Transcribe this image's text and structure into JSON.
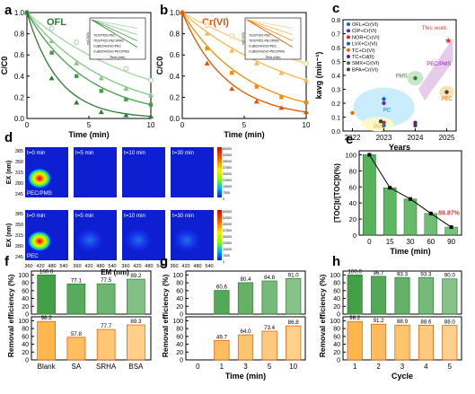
{
  "colors": {
    "green_dark": "#2e7d32",
    "green_mid": "#43a047",
    "green_light": "#81c784",
    "green_pale": "#a5d6a7",
    "orange_dark": "#e65100",
    "orange_mid": "#fb8c00",
    "orange_light": "#ffb74d",
    "orange_pale": "#ffcc80"
  },
  "panel_letters": {
    "a": "a",
    "b": "b",
    "c": "c",
    "d": "d",
    "e": "e",
    "f": "f",
    "g": "g",
    "h": "h"
  },
  "chart_data": [
    {
      "id": "a",
      "type": "line",
      "title": "OFL",
      "xlabel": "Time (min)",
      "ylabel": "C/C0",
      "xlim": [
        0,
        10
      ],
      "ylim": [
        0,
        1.0
      ],
      "xticks": [
        "0",
        "5",
        "10"
      ],
      "yticks": [
        "0.0",
        "0.2",
        "0.4",
        "0.6",
        "0.8",
        "1.0"
      ],
      "series": [
        {
          "name": "TiO2/TiO2-PEC",
          "x": [
            0,
            2,
            4,
            6,
            8,
            10
          ],
          "values": [
            1.0,
            0.85,
            0.72,
            0.58,
            0.47,
            0.36
          ]
        },
        {
          "name": "TiO2/TiO2-PEC/PMS",
          "x": [
            0,
            2,
            4,
            6,
            8,
            10
          ],
          "values": [
            1.0,
            0.73,
            0.52,
            0.38,
            0.28,
            0.22
          ]
        },
        {
          "name": "CuBi2O4/ZnO-PEC",
          "x": [
            0,
            2,
            4,
            6,
            8,
            10
          ],
          "values": [
            1.0,
            0.62,
            0.4,
            0.26,
            0.18,
            0.13
          ]
        },
        {
          "name": "CuBi2O4/ZnO-PEC/PMS",
          "x": [
            0,
            2,
            4,
            6,
            8,
            10
          ],
          "values": [
            1.0,
            0.38,
            0.15,
            0.06,
            0.03,
            0.02
          ]
        }
      ],
      "inset": {
        "ylabel": "ln(C/C0)",
        "xlabel": "Time (min)"
      }
    },
    {
      "id": "b",
      "type": "line",
      "title": "Cr(VI)",
      "xlabel": "Time (min)",
      "ylabel": "C/C0",
      "xlim": [
        0,
        10
      ],
      "ylim": [
        0,
        1.0
      ],
      "xticks": [
        "0",
        "5",
        "10"
      ],
      "yticks": [
        "0.0",
        "0.2",
        "0.4",
        "0.6",
        "0.8",
        "1.0"
      ],
      "series": [
        {
          "name": "TiO2/TiO2-PEC",
          "x": [
            0,
            2,
            4,
            6,
            8,
            10
          ],
          "values": [
            1.0,
            0.88,
            0.78,
            0.68,
            0.6,
            0.52
          ]
        },
        {
          "name": "TiO2/TiO2-PEC/PMS",
          "x": [
            0,
            2,
            4,
            6,
            8,
            10
          ],
          "values": [
            1.0,
            0.8,
            0.64,
            0.52,
            0.43,
            0.36
          ]
        },
        {
          "name": "CuBi2O4/ZnO-PEC",
          "x": [
            0,
            2,
            4,
            6,
            8,
            10
          ],
          "values": [
            1.0,
            0.66,
            0.43,
            0.3,
            0.2,
            0.15
          ]
        },
        {
          "name": "CuBi2O4/ZnO-PEC/PMS",
          "x": [
            0,
            2,
            4,
            6,
            8,
            10
          ],
          "values": [
            1.0,
            0.52,
            0.28,
            0.16,
            0.1,
            0.06
          ]
        }
      ],
      "inset": {
        "ylabel": "ln(C/C0)",
        "xlabel": "Time (min)"
      }
    },
    {
      "id": "c",
      "type": "scatter",
      "xlabel": "Years",
      "ylabel": "kavg (min⁻¹)",
      "xticks": [
        "2022",
        "2023",
        "2024",
        "2025"
      ],
      "xlim": [
        2021.7,
        2025.3
      ],
      "ylim": [
        0,
        0.8
      ],
      "yticks": [
        "0.0",
        "0.1",
        "0.2",
        "0.3",
        "0.4",
        "0.5",
        "0.6",
        "0.7",
        "0.8"
      ],
      "legend": [
        "OFL+Cr(VI)",
        "CIP+Cr(VI)",
        "NOR+Cr(VI)",
        "LVX+Cr(VI)",
        "TC+Cr(VI)",
        "TC+Cd(II)",
        "SMX+Cr(VI)",
        "BPA+Cr(VI)"
      ],
      "legend_colors": [
        "#1565c0",
        "#7b1fa2",
        "#c62828",
        "#1565c0",
        "#ef6c00",
        "#6a1b9a",
        "#2e7d32",
        "#424242"
      ],
      "points": [
        {
          "x": 2022,
          "y": 0.13,
          "series": "TC+Cr(VI)"
        },
        {
          "x": 2022.9,
          "y": 0.07,
          "series": "BPA+Cr(VI)"
        },
        {
          "x": 2023,
          "y": 0.23,
          "series": "OFL+Cr(VI)"
        },
        {
          "x": 2023,
          "y": 0.2,
          "series": "CIP+Cr(VI)"
        },
        {
          "x": 2023,
          "y": 0.06,
          "series": "NOR+Cr(VI)"
        },
        {
          "x": 2023,
          "y": 0.04,
          "series": "LVX+Cr(VI)"
        },
        {
          "x": 2024,
          "y": 0.38,
          "series": "SMX+Cr(VI)"
        },
        {
          "x": 2024,
          "y": 0.06,
          "series": "TC+Cd(II)"
        },
        {
          "x": 2024,
          "y": 0.04,
          "series": "BPA+Cr(VI)"
        },
        {
          "x": 2025,
          "y": 0.28,
          "series": "BPA+Cr(VI)"
        },
        {
          "x": 2025.05,
          "y": 0.65,
          "series": "This work"
        }
      ],
      "annotations": [
        "This work",
        "PMS",
        "PEC/PMS",
        "PC",
        "PEC",
        "PEC"
      ]
    },
    {
      "id": "d",
      "type": "heatmap",
      "xlabel": "EM (nm)",
      "ylabel": "EX (nm)",
      "xticks": [
        "360",
        "420",
        "480",
        "540"
      ],
      "yticks": [
        "385",
        "350",
        "315",
        "280",
        "245"
      ],
      "rows": [
        {
          "label": "PEC/PMS",
          "panels": [
            "t=0 min",
            "t=5 min",
            "t=10 min",
            "t=30 min"
          ]
        },
        {
          "label": "PEC",
          "panels": [
            "t=0 min",
            "t=5 min",
            "t=10 min",
            "t=30 min"
          ]
        }
      ],
      "colorbar": [
        "60000",
        "52500",
        "45000",
        "37500",
        "30000",
        "22500",
        "15000",
        "7500",
        "0"
      ]
    },
    {
      "id": "e",
      "type": "bar",
      "xlabel": "Time (min)",
      "ylabel": "[TOC]t/[TOC]0(%)",
      "categories": [
        "0",
        "15",
        "30",
        "60",
        "90"
      ],
      "values": [
        100,
        59,
        45,
        27,
        10
      ],
      "yticks": [
        "0",
        "20",
        "40",
        "60",
        "80",
        "100"
      ],
      "ylim": [
        0,
        105
      ],
      "annotation": "89.87%"
    },
    {
      "id": "f",
      "type": "bar",
      "ylabel": "Removal efficiency (%)",
      "categories": [
        "Blank",
        "SA",
        "SRHA",
        "BSA"
      ],
      "yticks": [
        "0",
        "20",
        "40",
        "60",
        "80",
        "100"
      ],
      "ylim": [
        0,
        110
      ],
      "series": [
        {
          "name": "OFL",
          "values": [
            100,
            77.1,
            77.5,
            89.2
          ]
        },
        {
          "name": "Cr(VI)",
          "values": [
            98.2,
            57.8,
            77.7,
            89.3
          ]
        }
      ]
    },
    {
      "id": "g",
      "type": "bar",
      "ylabel": "Removal efficiency (%)",
      "xlabel": "Time (min)",
      "categories": [
        "0",
        "1",
        "3",
        "5",
        "10"
      ],
      "yticks": [
        "0",
        "20",
        "40",
        "60",
        "80",
        "100"
      ],
      "ylim": [
        0,
        110
      ],
      "series": [
        {
          "name": "OFL",
          "values": [
            null,
            60.6,
            80.4,
            84.8,
            91.0
          ]
        },
        {
          "name": "Cr(VI)",
          "values": [
            null,
            49.7,
            64.0,
            73.4,
            86.8
          ]
        }
      ]
    },
    {
      "id": "h",
      "type": "bar",
      "ylabel": "Removal efficiency (%)",
      "xlabel": "Cycle",
      "categories": [
        "1",
        "2",
        "3",
        "4",
        "5"
      ],
      "yticks": [
        "0",
        "20",
        "40",
        "60",
        "80",
        "100"
      ],
      "ylim": [
        0,
        110
      ],
      "series": [
        {
          "name": "OFL",
          "values": [
            100.0,
            96.7,
            93.3,
            93.3,
            90.0
          ]
        },
        {
          "name": "Cr(VI)",
          "values": [
            98.2,
            91.2,
            88.9,
            88.6,
            88.0
          ]
        }
      ]
    }
  ]
}
